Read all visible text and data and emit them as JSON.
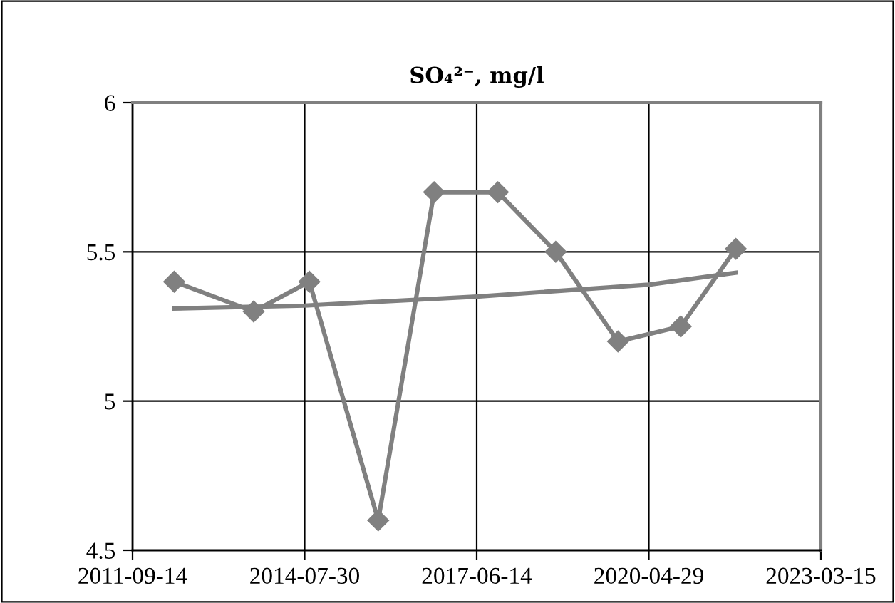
{
  "chart_data": {
    "type": "line",
    "title": "SO₄²⁻, mg/l",
    "xlim": [
      "2011-09-14",
      "2023-03-15"
    ],
    "xticks": [
      "2011-09-14",
      "2014-07-30",
      "2017-06-14",
      "2020-04-29",
      "2023-03-15"
    ],
    "ylim": [
      4.5,
      6
    ],
    "yticks": [
      4.5,
      5,
      5.5,
      6
    ],
    "grid": true,
    "legend": false,
    "series": [
      {
        "color": "#808080",
        "marker": "diamond",
        "line_style": "solid",
        "x": [
          "2012-05-25",
          "2013-09-22",
          "2014-08-28",
          "2015-10-22",
          "2016-09-27",
          "2017-10-21",
          "2018-10-09",
          "2019-10-24",
          "2020-11-10",
          "2021-10-12"
        ],
        "values": [
          5.4,
          5.3,
          5.4,
          4.6,
          5.7,
          5.7,
          5.5,
          5.2,
          5.25,
          5.51
        ]
      },
      {
        "type": "line",
        "color": "#808080",
        "marker": "none",
        "line_style": "solid",
        "x": [
          "2012-05-25",
          "2014-07-30",
          "2017-06-14",
          "2020-04-29",
          "2021-10-12"
        ],
        "values": [
          5.31,
          5.32,
          5.35,
          5.39,
          5.43
        ]
      }
    ]
  }
}
